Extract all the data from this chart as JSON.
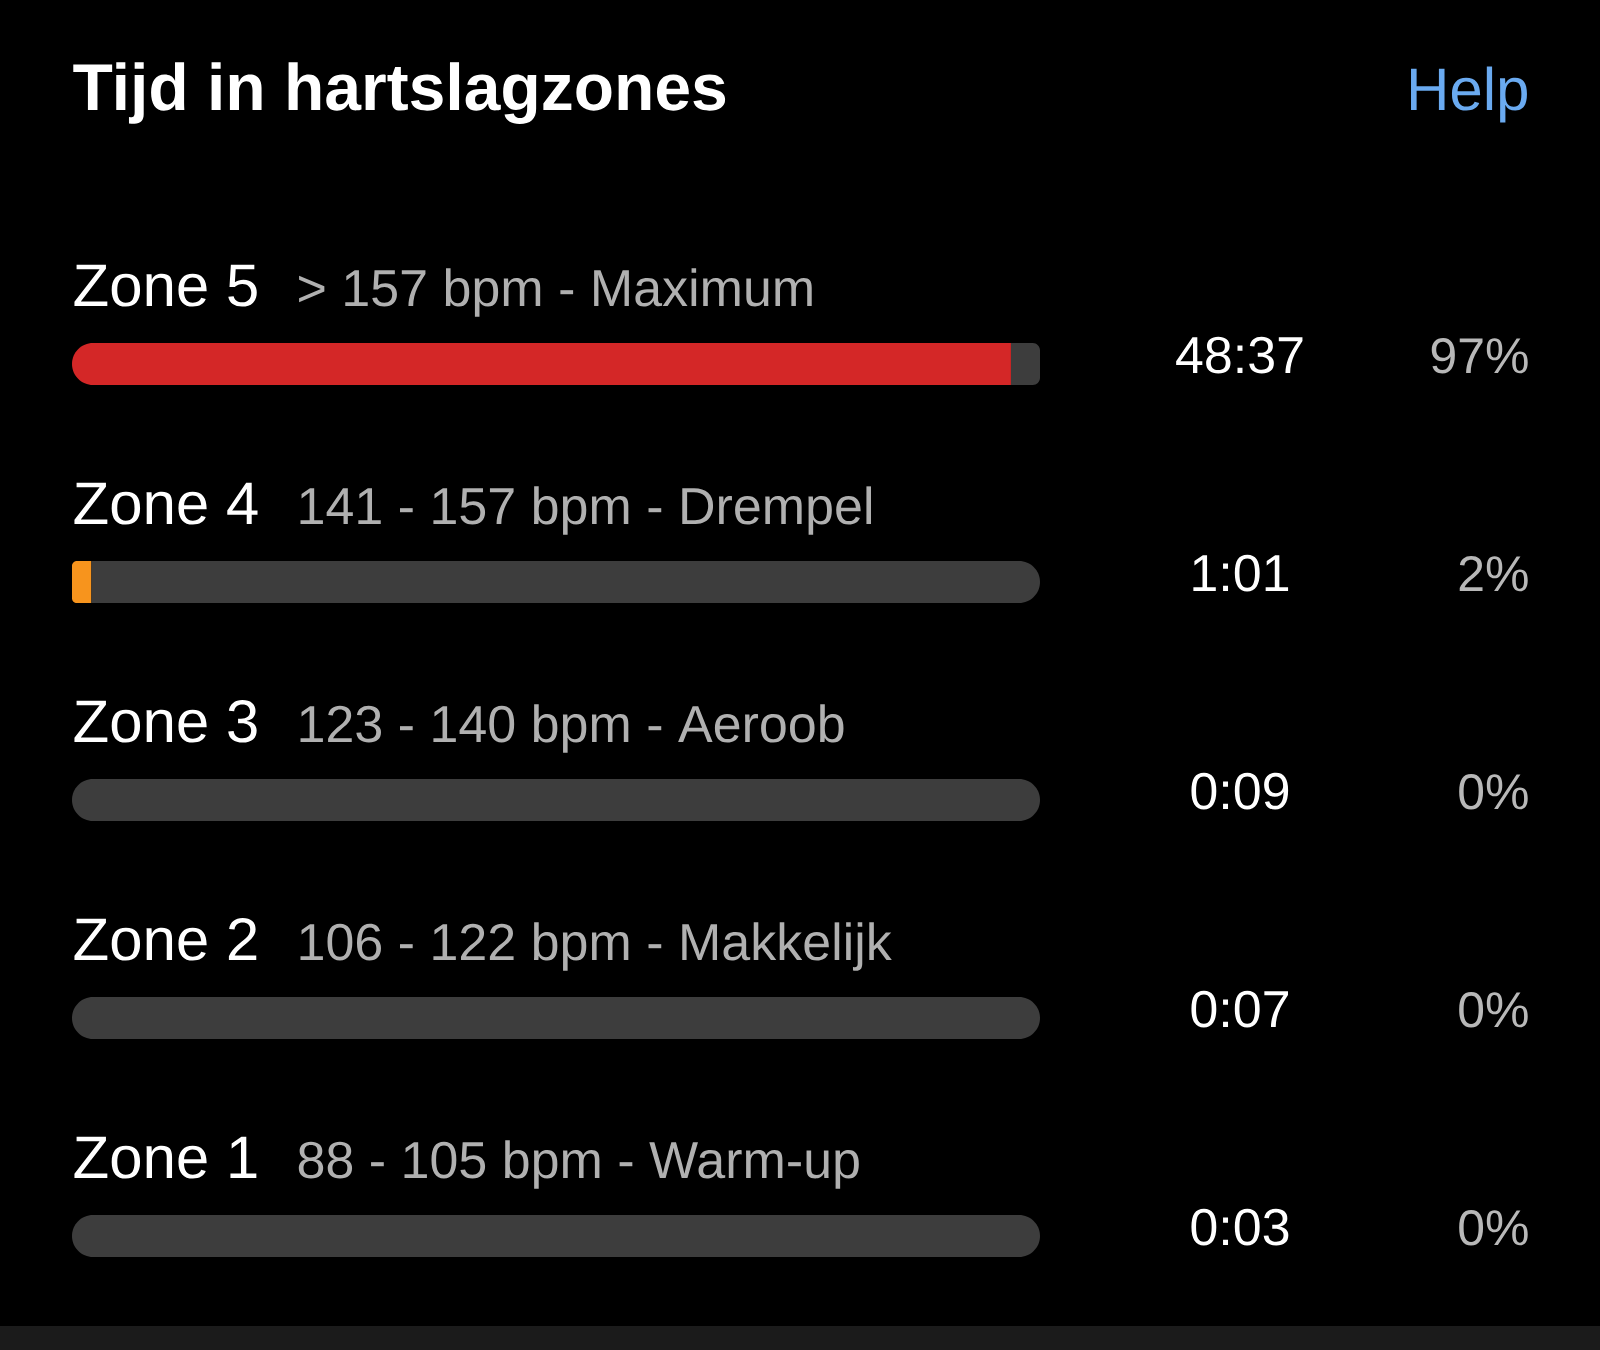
{
  "chart_data": {
    "type": "bar",
    "orientation": "horizontal",
    "stacked": true,
    "title": "Tijd in hartslagzones",
    "categories": [
      "Zone 5",
      "Zone 4",
      "Zone 3",
      "Zone 2",
      "Zone 1"
    ],
    "series": [
      {
        "colors": [
          "#d42727",
          "#f7941d",
          null,
          null,
          null
        ],
        "values": [
          97,
          2,
          0,
          0,
          0
        ],
        "value_labels": [
          "97%",
          "2%",
          "0%",
          "0%",
          "0%"
        ]
      },
      {
        "color": "#3d3d3d",
        "values": [
          3,
          98,
          100,
          100,
          100
        ]
      }
    ],
    "xlim": [
      0,
      100
    ],
    "tick_labels": "y",
    "annotations": [
      "Help",
      "> 157 bpm - Maximum",
      "48:37",
      "141 - 157 bpm - Drempel",
      "1:01",
      "123 - 140 bpm - Aeroob",
      "0:09",
      "106 - 122 bpm - Makkelijk",
      "0:07",
      "88 - 105 bpm - Warm-up",
      "0:03"
    ]
  }
}
